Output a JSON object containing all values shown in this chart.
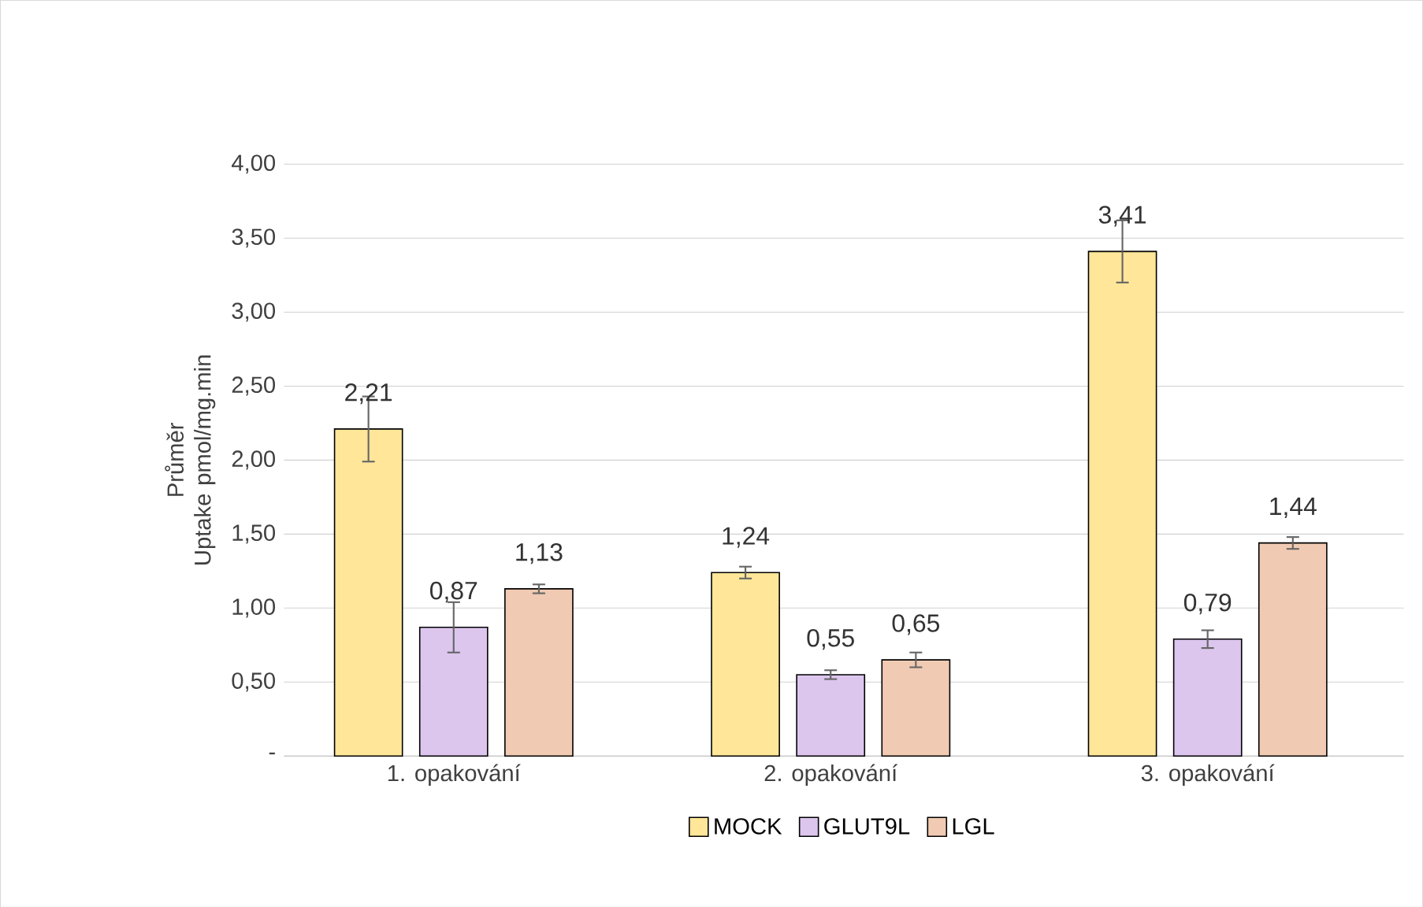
{
  "chart_data": {
    "type": "bar",
    "ylabel": "Průměr Uptake pmol/mg.min",
    "categories": [
      "1. opakování",
      "2. opakování",
      "3. opakování"
    ],
    "series": [
      {
        "name": "MOCK",
        "color": "#ffe699",
        "values": [
          2.21,
          1.24,
          3.41
        ],
        "errors": [
          0.22,
          0.04,
          0.21
        ],
        "value_labels": [
          "2,21",
          "1,24",
          "3,41"
        ]
      },
      {
        "name": "GLUT9L",
        "color": "#dcc6ee",
        "values": [
          0.87,
          0.55,
          0.79
        ],
        "errors": [
          0.17,
          0.03,
          0.06
        ],
        "value_labels": [
          "0,87",
          "0,55",
          "0,79"
        ]
      },
      {
        "name": "LGL",
        "color": "#f0cab2",
        "values": [
          1.13,
          0.65,
          1.44
        ],
        "errors": [
          0.03,
          0.05,
          0.04
        ],
        "value_labels": [
          "1,13",
          "0,65",
          "1,44"
        ]
      }
    ],
    "ylim": [
      0,
      4
    ],
    "yticks": [
      {
        "value": 0,
        "label": "-"
      },
      {
        "value": 0.5,
        "label": "0,50"
      },
      {
        "value": 1,
        "label": "1,00"
      },
      {
        "value": 1.5,
        "label": "1,50"
      },
      {
        "value": 2,
        "label": "2,00"
      },
      {
        "value": 2.5,
        "label": "2,50"
      },
      {
        "value": 3,
        "label": "3,00"
      },
      {
        "value": 3.5,
        "label": "3,50"
      },
      {
        "value": 4,
        "label": "4,00"
      }
    ],
    "grid": "y",
    "legend": "bottom"
  }
}
